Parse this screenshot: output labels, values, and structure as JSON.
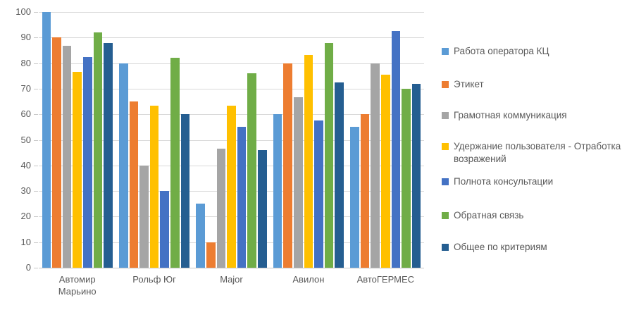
{
  "chart_data": {
    "type": "bar",
    "title": "",
    "xlabel": "",
    "ylabel": "",
    "categories": [
      "Автомир Марьино",
      "Рольф Юг",
      "Major",
      "Авилон",
      "АвтоГЕРМЕС"
    ],
    "series": [
      {
        "name": "Работа оператора КЦ",
        "color": "#5b9bd5",
        "values": [
          100,
          80,
          25,
          60,
          55
        ]
      },
      {
        "name": "Этикет",
        "color": "#ed7d31",
        "values": [
          90,
          65,
          10,
          80,
          60
        ]
      },
      {
        "name": "Грамотная коммуникация",
        "color": "#a5a5a5",
        "values": [
          86.7,
          40,
          46.5,
          66.7,
          80
        ]
      },
      {
        "name": "Удержание пользователя - Отработка возражений",
        "color": "#ffc000",
        "values": [
          76.7,
          63.3,
          63.3,
          83.3,
          75.5
        ]
      },
      {
        "name": "Полнота консультации",
        "color": "#4472c4",
        "values": [
          82.3,
          30,
          55,
          57.5,
          92.5
        ]
      },
      {
        "name": "Обратная связь",
        "color": "#70ad47",
        "values": [
          92,
          82,
          76,
          88,
          70
        ]
      },
      {
        "name": "Общее по критериям",
        "color": "#255e91",
        "values": [
          88,
          60,
          46,
          72.5,
          72
        ]
      }
    ],
    "ylim": [
      0,
      100
    ],
    "ytick_step": 10,
    "grid": true,
    "legend_position": "right"
  },
  "style_colors": {
    "gridline": "#d9d9d9",
    "axis_text": "#595959",
    "legend_text": "#595959"
  },
  "legend_item_tops": [
    64,
    111,
    155,
    199,
    249,
    297,
    342
  ]
}
